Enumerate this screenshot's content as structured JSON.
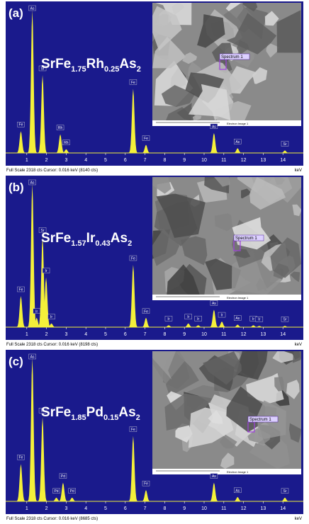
{
  "figure": {
    "x_unit": "keV",
    "xticks": [
      1,
      2,
      3,
      4,
      5,
      6,
      7,
      8,
      9,
      10,
      11,
      12,
      13,
      14
    ],
    "panels": [
      {
        "label": "(a)",
        "formula": [
          "SrFe",
          "1.75",
          "Rh",
          "0.25",
          "As",
          "2"
        ],
        "ylim": [
          0,
          2318
        ],
        "footer": "Full Scale 2318 cts  Cursor: 0.016 keV (8140 cts)",
        "spectrum_label": "Spectrum 1",
        "image_label": "Electron Image 1",
        "peaks": [
          {
            "name": "Fe",
            "energy": 0.7,
            "height": 350
          },
          {
            "name": "As",
            "energy": 1.28,
            "height": 2290
          },
          {
            "name": "Sr",
            "energy": 1.8,
            "height": 1250
          },
          {
            "name": "Rh",
            "energy": 2.7,
            "height": 300
          },
          {
            "name": "Rh",
            "energy": 3.0,
            "height": 60
          },
          {
            "name": "Fe",
            "energy": 6.4,
            "height": 1030
          },
          {
            "name": "Fe",
            "energy": 7.05,
            "height": 130
          },
          {
            "name": "As",
            "energy": 10.5,
            "height": 320
          },
          {
            "name": "As",
            "energy": 11.7,
            "height": 75
          },
          {
            "name": "Sr",
            "energy": 14.1,
            "height": 40
          }
        ]
      },
      {
        "label": "(b)",
        "formula": [
          "SrFe",
          "1.57",
          "Ir",
          "0.43",
          "As",
          "2"
        ],
        "ylim": [
          0,
          2318
        ],
        "footer": "Full Scale 2318 cts  Cursor: 0.016 keV (8198 cts)",
        "spectrum_label": "Spectrum 1",
        "image_label": "Electron Image 1",
        "peaks": [
          {
            "name": "Fe",
            "energy": 0.7,
            "height": 500
          },
          {
            "name": "As",
            "energy": 1.28,
            "height": 2300
          },
          {
            "name": "Ir",
            "energy": 1.5,
            "height": 150
          },
          {
            "name": "Sr",
            "energy": 1.8,
            "height": 1450
          },
          {
            "name": "Ir",
            "energy": 1.98,
            "height": 800
          },
          {
            "name": "Ir",
            "energy": 2.25,
            "height": 60
          },
          {
            "name": "Fe",
            "energy": 6.4,
            "height": 1000
          },
          {
            "name": "Fe",
            "energy": 7.05,
            "height": 150
          },
          {
            "name": "Ir",
            "energy": 8.2,
            "height": 30
          },
          {
            "name": "Ir",
            "energy": 9.2,
            "height": 60
          },
          {
            "name": "Ir",
            "energy": 9.7,
            "height": 30
          },
          {
            "name": "As",
            "energy": 10.5,
            "height": 280
          },
          {
            "name": "Ir",
            "energy": 10.9,
            "height": 90
          },
          {
            "name": "As",
            "energy": 11.7,
            "height": 40
          },
          {
            "name": "Ir",
            "energy": 12.5,
            "height": 30
          },
          {
            "name": "Ir",
            "energy": 12.8,
            "height": 20
          },
          {
            "name": "Sr",
            "energy": 14.1,
            "height": 20
          }
        ]
      },
      {
        "label": "(c)",
        "formula": [
          "SrFe",
          "1.85",
          "Pd",
          "0.15",
          "As",
          "2"
        ],
        "ylim": [
          0,
          2318
        ],
        "footer": "Full Scale 2318 cts  Cursor: 0.016 keV (8685 cts)",
        "spectrum_label": "Spectrum 1",
        "image_label": "Electron Image 1",
        "peaks": [
          {
            "name": "Fe",
            "energy": 0.7,
            "height": 600
          },
          {
            "name": "As",
            "energy": 1.28,
            "height": 2300
          },
          {
            "name": "Sr",
            "energy": 1.8,
            "height": 1350
          },
          {
            "name": "Pd",
            "energy": 2.5,
            "height": 60
          },
          {
            "name": "Pd",
            "energy": 2.84,
            "height": 300
          },
          {
            "name": "Pd",
            "energy": 3.3,
            "height": 60
          },
          {
            "name": "Fe",
            "energy": 6.4,
            "height": 1050
          },
          {
            "name": "Fe",
            "energy": 7.05,
            "height": 180
          },
          {
            "name": "As",
            "energy": 10.5,
            "height": 300
          },
          {
            "name": "As",
            "energy": 11.7,
            "height": 70
          },
          {
            "name": "Sr",
            "energy": 14.1,
            "height": 60
          }
        ]
      }
    ]
  }
}
